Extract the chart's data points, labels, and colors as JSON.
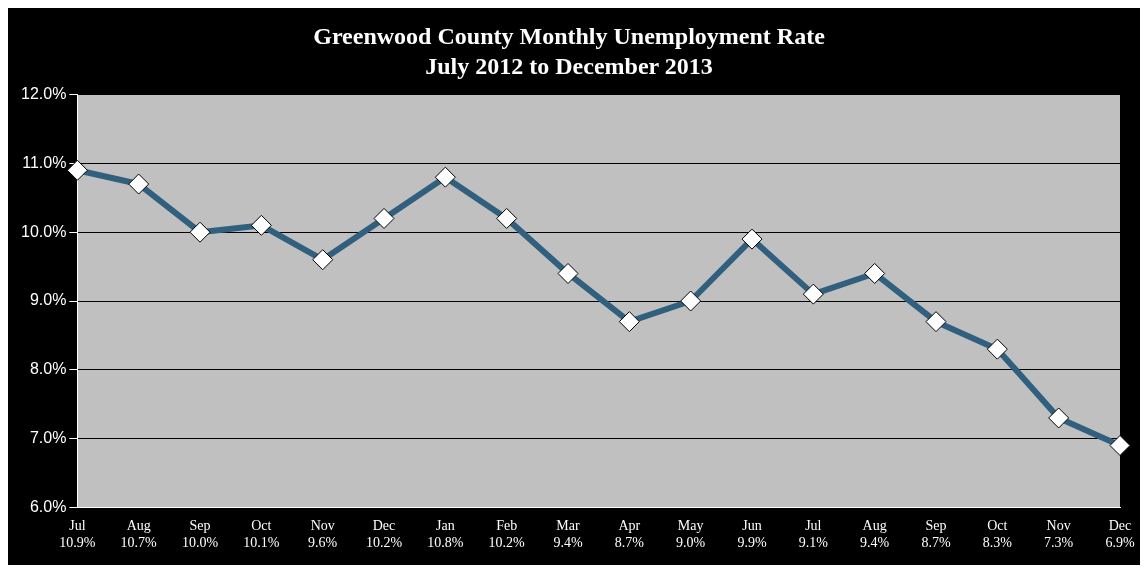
{
  "chart_data": {
    "type": "line",
    "title": "Greenwood County Monthly Unemployment Rate",
    "subtitle": "July 2012 to December 2013",
    "categories": [
      "Jul",
      "Aug",
      "Sep",
      "Oct",
      "Nov",
      "Dec",
      "Jan",
      "Feb",
      "Mar",
      "Apr",
      "May",
      "Jun",
      "Jul",
      "Aug",
      "Sep",
      "Oct",
      "Nov",
      "Dec"
    ],
    "series": [
      {
        "color": "#31607f",
        "values": [
          10.9,
          10.7,
          10.0,
          10.1,
          9.6,
          10.2,
          10.8,
          10.2,
          9.4,
          8.7,
          9.0,
          9.9,
          9.1,
          9.4,
          8.7,
          8.3,
          7.3,
          6.9
        ],
        "value_labels": [
          "10.9%",
          "10.7%",
          "10.0%",
          "10.1%",
          "9.6%",
          "10.2%",
          "10.8%",
          "10.2%",
          "9.4%",
          "8.7%",
          "9.0%",
          "9.9%",
          "9.1%",
          "9.4%",
          "8.7%",
          "8.3%",
          "7.3%",
          "6.9%"
        ]
      }
    ],
    "ylim": [
      6,
      12
    ],
    "yticks": [
      {
        "value": 6,
        "label": "6.0%"
      },
      {
        "value": 7,
        "label": "7.0%"
      },
      {
        "value": 8,
        "label": "8.0%"
      },
      {
        "value": 9,
        "label": "9.0%"
      },
      {
        "value": 10,
        "label": "10.0%"
      },
      {
        "value": 11,
        "label": "11.0%"
      },
      {
        "value": 12,
        "label": "12.0%"
      }
    ],
    "grid": "y",
    "legend": false,
    "marker": "diamond",
    "line_style": "solid"
  }
}
